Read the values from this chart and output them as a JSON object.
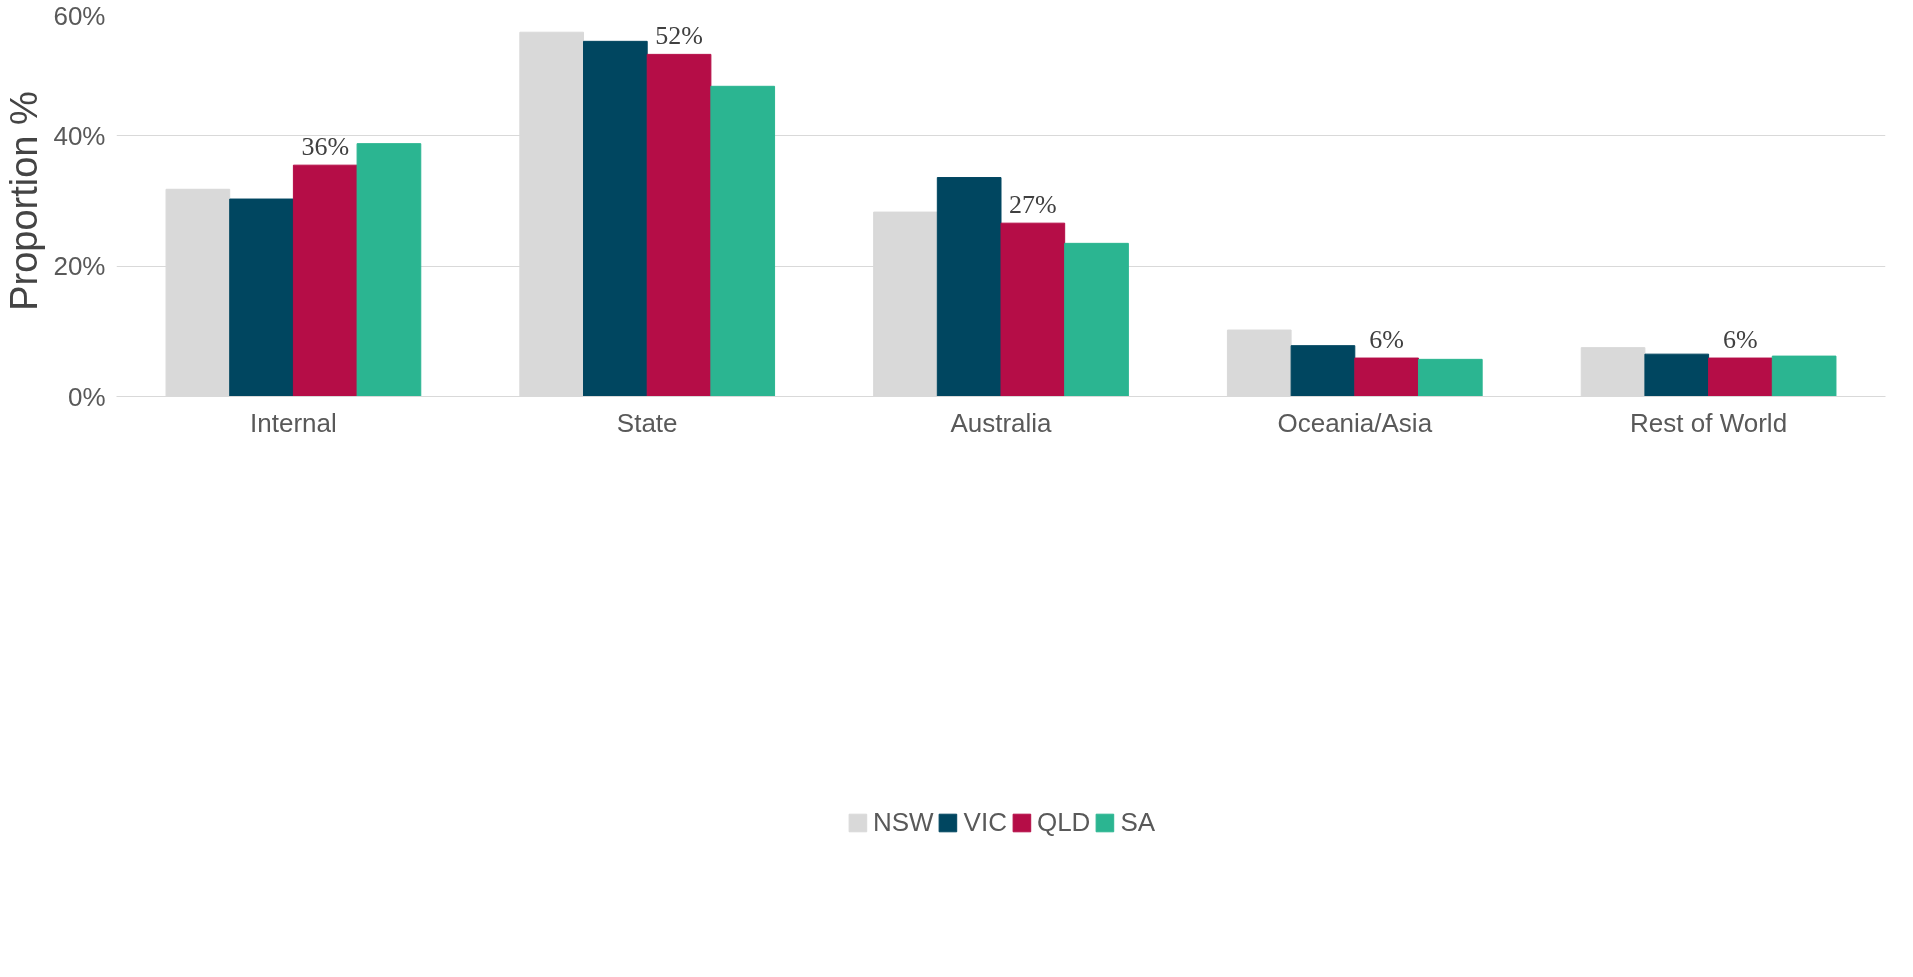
{
  "chart_data": {
    "type": "bar",
    "ylabel": "Proportion %",
    "categories": [
      "Internal",
      "State",
      "Australia",
      "Oceania/Asia",
      "Rest of World"
    ],
    "series": [
      {
        "name": "NSW",
        "color": "#d9d9d9",
        "values": [
          31.8,
          55.9,
          28.3,
          10.2,
          7.5
        ]
      },
      {
        "name": "VIC",
        "color": "#004660",
        "values": [
          30.3,
          54.5,
          33.6,
          7.8,
          6.5
        ]
      },
      {
        "name": "QLD",
        "color": "#b50d47",
        "values": [
          35.5,
          52.5,
          26.6,
          5.9,
          5.9
        ],
        "value_labels": [
          "36%",
          "52%",
          "27%",
          "6%",
          "6%"
        ]
      },
      {
        "name": "SA",
        "color": "#2bb591",
        "values": [
          38.8,
          47.6,
          23.5,
          5.7,
          6.2
        ]
      }
    ],
    "ylim": [
      0,
      60
    ],
    "yticks": [
      {
        "value": 0,
        "label": "0%"
      },
      {
        "value": 20,
        "label": "20%"
      },
      {
        "value": 40,
        "label": "40%"
      },
      {
        "value": 60,
        "label": "60%"
      }
    ],
    "grid": "y",
    "legend": "bottom"
  }
}
